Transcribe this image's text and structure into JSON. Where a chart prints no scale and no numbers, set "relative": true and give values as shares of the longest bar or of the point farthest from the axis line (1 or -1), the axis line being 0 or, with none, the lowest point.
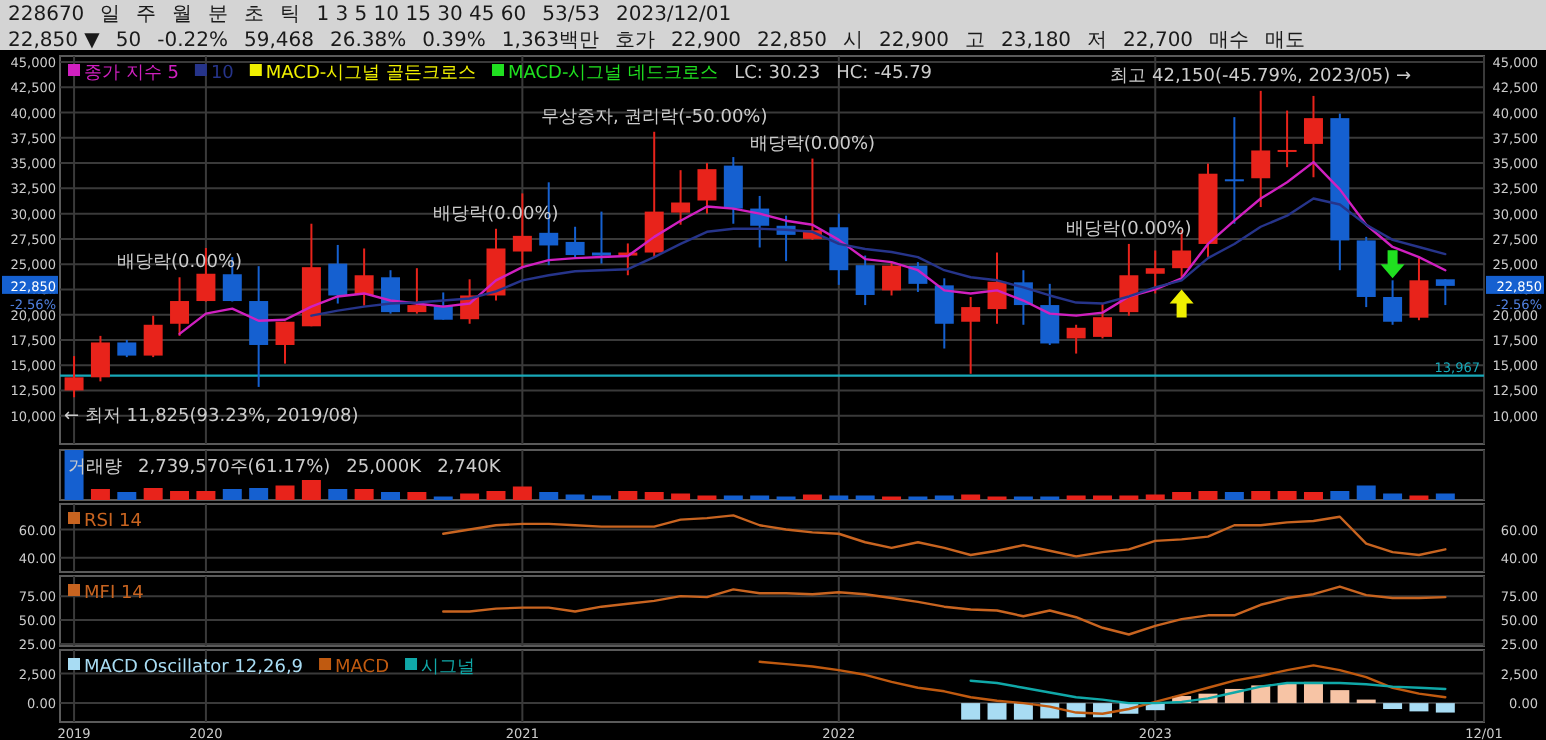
{
  "chart_data": [
    {
      "type": "other",
      "annotations": [
        "228670",
        "일",
        "주",
        "월",
        "분",
        "초",
        "틱",
        "1 3 5 10 15 30 45 60",
        "53/53",
        "2023/12/01"
      ]
    },
    {
      "type": "other",
      "annotations": [
        "22,850 ▼",
        "50",
        "-0.22%",
        "59,468",
        "26.38%",
        "0.39%",
        "1,363백만",
        "호가",
        "22,900",
        "22,850",
        "시",
        "22,900",
        "고",
        "23,180",
        "저",
        "22,700",
        "매수",
        "매도"
      ]
    },
    {
      "type": "candlestick",
      "x": [
        "2019-08",
        "2019-09",
        "2019-10",
        "2019-11",
        "2019-12",
        "2020-01",
        "2020-02",
        "2020-03",
        "2020-04",
        "2020-05",
        "2020-06",
        "2020-07",
        "2020-08",
        "2020-09",
        "2020-10",
        "2020-11",
        "2020-12",
        "2021-01",
        "2021-02",
        "2021-03",
        "2021-04",
        "2021-05",
        "2021-06",
        "2021-07",
        "2021-08",
        "2021-09",
        "2021-10",
        "2021-11",
        "2021-12",
        "2022-01",
        "2022-02",
        "2022-03",
        "2022-04",
        "2022-05",
        "2022-06",
        "2022-07",
        "2022-08",
        "2022-09",
        "2022-10",
        "2022-11",
        "2022-12",
        "2023-01",
        "2023-02",
        "2023-03",
        "2023-04",
        "2023-05",
        "2023-06",
        "2023-07",
        "2023-08",
        "2023-09",
        "2023-10",
        "2023-11",
        "2023-12"
      ],
      "ohlc": [
        [
          12500,
          15900,
          11825,
          13800
        ],
        [
          13800,
          17900,
          13400,
          17250
        ],
        [
          17250,
          17500,
          15800,
          15950
        ],
        [
          15950,
          19900,
          15800,
          19000
        ],
        [
          19100,
          23700,
          17900,
          21350
        ],
        [
          21350,
          26600,
          21300,
          24050
        ],
        [
          24000,
          25700,
          21300,
          21350
        ],
        [
          21350,
          24800,
          12850,
          17000
        ],
        [
          17000,
          19300,
          15150,
          19300
        ],
        [
          18850,
          29000,
          18850,
          24700
        ],
        [
          25050,
          26900,
          21100,
          21900
        ],
        [
          21950,
          26550,
          20900,
          23900
        ],
        [
          23700,
          24400,
          20100,
          20250
        ],
        [
          20250,
          24600,
          20100,
          20950
        ],
        [
          20900,
          22200,
          19500,
          19500
        ],
        [
          19550,
          23500,
          19100,
          21900
        ],
        [
          21900,
          28500,
          21400,
          26550
        ],
        [
          26250,
          32000,
          24700,
          27800
        ],
        [
          28100,
          33100,
          24900,
          26850
        ],
        [
          27200,
          28700,
          25700,
          25900
        ],
        [
          26150,
          30200,
          25050,
          25850
        ],
        [
          25850,
          27050,
          23900,
          26150
        ],
        [
          26150,
          38100,
          25700,
          30200
        ],
        [
          30100,
          34300,
          28900,
          31100
        ],
        [
          31300,
          35000,
          30000,
          34400
        ],
        [
          34750,
          35600,
          29000,
          30500
        ],
        [
          30500,
          31750,
          26650,
          28800
        ],
        [
          28800,
          29800,
          25300,
          27900
        ],
        [
          27500,
          35450,
          27400,
          28350
        ],
        [
          28650,
          30000,
          22950,
          24400
        ],
        [
          24900,
          25850,
          20950,
          21950
        ],
        [
          22400,
          25200,
          21900,
          24850
        ],
        [
          24850,
          25200,
          22250,
          23050
        ],
        [
          22900,
          23600,
          16650,
          19100
        ],
        [
          19300,
          21750,
          14150,
          20750
        ],
        [
          20550,
          26150,
          19100,
          23250
        ],
        [
          23200,
          24400,
          19000,
          20950
        ],
        [
          20950,
          23050,
          17000,
          17150
        ],
        [
          17650,
          19000,
          16150,
          18700
        ],
        [
          17800,
          21100,
          17650,
          19750
        ],
        [
          20250,
          27000,
          19900,
          23900
        ],
        [
          24050,
          26350,
          22100,
          24600
        ],
        [
          24600,
          28350,
          23750,
          26350
        ],
        [
          27000,
          34950,
          25700,
          33950
        ],
        [
          33400,
          39550,
          29000,
          33200
        ],
        [
          33500,
          42150,
          30650,
          36250
        ],
        [
          36250,
          40200,
          34600,
          36300
        ],
        [
          36900,
          41650,
          33600,
          39450
        ],
        [
          39450,
          39900,
          24400,
          27350
        ],
        [
          27350,
          27700,
          20750,
          21750
        ],
        [
          21750,
          23400,
          19000,
          19300
        ],
        [
          19700,
          25600,
          19450,
          23400
        ],
        [
          23500,
          23500,
          20950,
          22850
        ]
      ],
      "colors": [
        "#e8231b",
        "#e8231b",
        "#1560d0",
        "#e8231b",
        "#e8231b",
        "#e8231b",
        "#1560d0",
        "#1560d0",
        "#e8231b",
        "#e8231b",
        "#1560d0",
        "#e8231b",
        "#1560d0",
        "#e8231b",
        "#1560d0",
        "#e8231b",
        "#e8231b",
        "#e8231b",
        "#1560d0",
        "#1560d0",
        "#1560d0",
        "#e8231b",
        "#e8231b",
        "#e8231b",
        "#e8231b",
        "#1560d0",
        "#1560d0",
        "#1560d0",
        "#e8231b",
        "#1560d0",
        "#1560d0",
        "#e8231b",
        "#1560d0",
        "#1560d0",
        "#e8231b",
        "#e8231b",
        "#1560d0",
        "#1560d0",
        "#e8231b",
        "#e8231b",
        "#e8231b",
        "#e8231b",
        "#e8231b",
        "#e8231b",
        "#1560d0",
        "#e8231b",
        "#e8231b",
        "#e8231b",
        "#1560d0",
        "#1560d0",
        "#1560d0",
        "#e8231b",
        "#1560d0"
      ],
      "series": [
        {
          "name": "종가 지수 5",
          "type": "line",
          "color": "#d020c0",
          "values": [
            null,
            null,
            null,
            null,
            18100,
            20100,
            20600,
            19400,
            19500,
            20800,
            21800,
            22100,
            21400,
            21100,
            20800,
            21100,
            23400,
            24700,
            25400,
            25600,
            25700,
            25800,
            27700,
            29300,
            30700,
            30500,
            30000,
            29300,
            28900,
            27400,
            25500,
            25200,
            24400,
            22400,
            22100,
            22400,
            21400,
            20100,
            19900,
            20200,
            21800,
            22500,
            23600,
            27000,
            29300,
            31500,
            33100,
            35100,
            32400,
            28900,
            26700,
            25700,
            24400
          ]
        },
        {
          "name": "10",
          "type": "line",
          "color": "#26348a",
          "values": [
            null,
            null,
            null,
            null,
            null,
            null,
            null,
            null,
            null,
            19900,
            20400,
            20800,
            21100,
            21200,
            21400,
            21600,
            22300,
            23400,
            23900,
            24300,
            24400,
            24500,
            25700,
            27000,
            28200,
            28500,
            28500,
            28400,
            28200,
            27000,
            26500,
            26200,
            25700,
            24400,
            23700,
            23400,
            22700,
            21900,
            21200,
            21100,
            21800,
            22700,
            23400,
            25600,
            27000,
            28700,
            29800,
            31500,
            30900,
            28900,
            27400,
            26700,
            26000
          ]
        },
        {
          "name": "MACD-시그널 골든크로스",
          "type": "scatter",
          "color": "#f0f000",
          "x": [
            "2023-02"
          ],
          "values": [
            21100
          ]
        },
        {
          "name": "MACD-시그널 데드크로스",
          "type": "scatter",
          "color": "#20e020",
          "x": [
            "2023-10"
          ],
          "values": [
            25000
          ]
        }
      ],
      "xlim": [
        "2019-07-15",
        "2024-01-15"
      ],
      "ylim": [
        7200,
        45600
      ],
      "yticks": [
        {
          "value": 10000,
          "label": "10,000"
        },
        {
          "value": 12500,
          "label": "12,500"
        },
        {
          "value": 15000,
          "label": "15,000"
        },
        {
          "value": 17500,
          "label": "17,500"
        },
        {
          "value": 20000,
          "label": "20,000"
        },
        {
          "value": 22500,
          "label": null
        },
        {
          "value": 25000,
          "label": "25,000"
        },
        {
          "value": 27500,
          "label": "27,500"
        },
        {
          "value": 30000,
          "label": "30,000"
        },
        {
          "value": 32500,
          "label": "32,500"
        },
        {
          "value": 35000,
          "label": "35,000"
        },
        {
          "value": 37500,
          "label": "37,500"
        },
        {
          "value": 40000,
          "label": "40,000"
        },
        {
          "value": 42500,
          "label": "42,500"
        },
        {
          "value": 45000,
          "label": "45,000"
        }
      ],
      "y2lim": [
        7200,
        45600
      ],
      "y2ticks": [
        {
          "value": 10000,
          "label": "10,000"
        },
        {
          "value": 12500,
          "label": "12,500"
        },
        {
          "value": 15000,
          "label": "15,000"
        },
        {
          "value": 17500,
          "label": "17,500"
        },
        {
          "value": 20000,
          "label": "20,000"
        },
        {
          "value": 22500,
          "label": null
        },
        {
          "value": 25000,
          "label": "25,000"
        },
        {
          "value": 27500,
          "label": "27,500"
        },
        {
          "value": 30000,
          "label": "30,000"
        },
        {
          "value": 32500,
          "label": "32,500"
        },
        {
          "value": 35000,
          "label": "35,000"
        },
        {
          "value": 37500,
          "label": "37,500"
        },
        {
          "value": 40000,
          "label": "40,000"
        },
        {
          "value": 42500,
          "label": "42,500"
        },
        {
          "value": 45000,
          "label": "45,000"
        }
      ],
      "tick_labels": "y",
      "grid": true,
      "legend": "top left",
      "ref_lines": [
        {
          "axis": "y",
          "value": 13967,
          "label": "13,967",
          "color": "#18a8b8"
        }
      ],
      "annotations": [
        "LC: 30.23",
        "HC: -45.79",
        {
          "text": "22,850",
          "y": 22850
        },
        "-2.56%",
        {
          "text": "배당락(0.00%)",
          "x": "2019-12",
          "y": 23700
        },
        {
          "text": "배당락(0.00%)",
          "x": "2020-12",
          "y": 28500
        },
        {
          "text": "무상증자, 권리락(-50.00%)",
          "x": "2021-06",
          "y": 38100
        },
        {
          "text": "배당락(0.00%)",
          "x": "2021-12",
          "y": 35450
        },
        {
          "text": "배당락(0.00%)",
          "x": "2022-12",
          "y": 27000
        },
        {
          "text": "최고 42,150(-45.79%, 2023/05) →",
          "x": "2023-05",
          "y": 42150
        },
        {
          "text": "← 최저 11,825(93.23%, 2019/08)",
          "x": "2019-08",
          "y": 11825
        }
      ]
    },
    {
      "type": "bar",
      "relative": true,
      "x": [
        "2019-08",
        "2019-09",
        "2019-10",
        "2019-11",
        "2019-12",
        "2020-01",
        "2020-02",
        "2020-03",
        "2020-04",
        "2020-05",
        "2020-06",
        "2020-07",
        "2020-08",
        "2020-09",
        "2020-10",
        "2020-11",
        "2020-12",
        "2021-01",
        "2021-02",
        "2021-03",
        "2021-04",
        "2021-05",
        "2021-06",
        "2021-07",
        "2021-08",
        "2021-09",
        "2021-10",
        "2021-11",
        "2021-12",
        "2022-01",
        "2022-02",
        "2022-03",
        "2022-04",
        "2022-05",
        "2022-06",
        "2022-07",
        "2022-08",
        "2022-09",
        "2022-10",
        "2022-11",
        "2022-12",
        "2023-01",
        "2023-02",
        "2023-03",
        "2023-04",
        "2023-05",
        "2023-06",
        "2023-07",
        "2023-08",
        "2023-09",
        "2023-10",
        "2023-11",
        "2023-12"
      ],
      "values": [
        1,
        0.22,
        0.16,
        0.24,
        0.18,
        0.18,
        0.22,
        0.24,
        0.29,
        0.4,
        0.22,
        0.22,
        0.16,
        0.16,
        0.07,
        0.13,
        0.18,
        0.27,
        0.16,
        0.11,
        0.09,
        0.18,
        0.16,
        0.13,
        0.09,
        0.09,
        0.09,
        0.07,
        0.11,
        0.09,
        0.09,
        0.07,
        0.07,
        0.09,
        0.11,
        0.07,
        0.07,
        0.07,
        0.09,
        0.09,
        0.09,
        0.11,
        0.16,
        0.18,
        0.16,
        0.18,
        0.18,
        0.16,
        0.18,
        0.29,
        0.13,
        0.09,
        0.13
      ],
      "colors": [
        "#1560d0",
        "#e8231b",
        "#1560d0",
        "#e8231b",
        "#e8231b",
        "#e8231b",
        "#1560d0",
        "#1560d0",
        "#e8231b",
        "#e8231b",
        "#1560d0",
        "#e8231b",
        "#1560d0",
        "#e8231b",
        "#1560d0",
        "#e8231b",
        "#e8231b",
        "#e8231b",
        "#1560d0",
        "#1560d0",
        "#1560d0",
        "#e8231b",
        "#e8231b",
        "#e8231b",
        "#e8231b",
        "#1560d0",
        "#1560d0",
        "#1560d0",
        "#e8231b",
        "#1560d0",
        "#1560d0",
        "#e8231b",
        "#1560d0",
        "#1560d0",
        "#e8231b",
        "#e8231b",
        "#1560d0",
        "#1560d0",
        "#e8231b",
        "#e8231b",
        "#e8231b",
        "#e8231b",
        "#e8231b",
        "#e8231b",
        "#1560d0",
        "#e8231b",
        "#e8231b",
        "#e8231b",
        "#1560d0",
        "#1560d0",
        "#1560d0",
        "#e8231b",
        "#1560d0"
      ],
      "xlim": [
        "2019-07-15",
        "2024-01-15"
      ],
      "tick_labels": false,
      "grid": "x",
      "annotations": [
        "거래량",
        "2,739,570주(61.17%)",
        "25,000K",
        "2,740K"
      ]
    },
    {
      "type": "line",
      "x": [
        "2020-10",
        "2020-11",
        "2020-12",
        "2021-01",
        "2021-02",
        "2021-03",
        "2021-04",
        "2021-05",
        "2021-06",
        "2021-07",
        "2021-08",
        "2021-09",
        "2021-10",
        "2021-11",
        "2021-12",
        "2022-01",
        "2022-02",
        "2022-03",
        "2022-04",
        "2022-05",
        "2022-06",
        "2022-07",
        "2022-08",
        "2022-09",
        "2022-10",
        "2022-11",
        "2022-12",
        "2023-01",
        "2023-02",
        "2023-03",
        "2023-04",
        "2023-05",
        "2023-06",
        "2023-07",
        "2023-08",
        "2023-09",
        "2023-10",
        "2023-11",
        "2023-12"
      ],
      "series": [
        {
          "name": "RSI 14",
          "color": "#c86420",
          "values": [
            57,
            60,
            63,
            64,
            64,
            63,
            62,
            62,
            62,
            67,
            68,
            70,
            63,
            60,
            58,
            57,
            51,
            47,
            51,
            47,
            42,
            45,
            49,
            45,
            41,
            44,
            46,
            52,
            53,
            55,
            63,
            63,
            65,
            66,
            69,
            50,
            44,
            42,
            46
          ]
        }
      ],
      "xlim": [
        "2019-07-15",
        "2024-01-15"
      ],
      "ylim": [
        30,
        78
      ],
      "yticks": [
        {
          "value": 40,
          "label": "40.00"
        },
        {
          "value": 60,
          "label": "60.00"
        }
      ],
      "y2lim": [
        30,
        78
      ],
      "y2ticks": [
        {
          "value": 40,
          "label": "40.00"
        },
        {
          "value": 60,
          "label": "60.00"
        }
      ],
      "tick_labels": "y",
      "grid": true,
      "legend": "top left"
    },
    {
      "type": "line",
      "x": [
        "2020-10",
        "2020-11",
        "2020-12",
        "2021-01",
        "2021-02",
        "2021-03",
        "2021-04",
        "2021-05",
        "2021-06",
        "2021-07",
        "2021-08",
        "2021-09",
        "2021-10",
        "2021-11",
        "2021-12",
        "2022-01",
        "2022-02",
        "2022-03",
        "2022-04",
        "2022-05",
        "2022-06",
        "2022-07",
        "2022-08",
        "2022-09",
        "2022-10",
        "2022-11",
        "2022-12",
        "2023-01",
        "2023-02",
        "2023-03",
        "2023-04",
        "2023-05",
        "2023-06",
        "2023-07",
        "2023-08",
        "2023-09",
        "2023-10",
        "2023-11",
        "2023-12"
      ],
      "series": [
        {
          "name": "MFI 14",
          "color": "#c86420",
          "values": [
            59,
            59,
            62,
            63,
            63,
            59,
            64,
            67,
            70,
            75,
            74,
            82,
            78,
            78,
            77,
            79,
            77,
            73,
            69,
            64,
            61,
            60,
            54,
            60,
            53,
            42,
            35,
            44,
            51,
            55,
            55,
            66,
            73,
            77,
            85,
            76,
            73,
            73,
            74
          ]
        }
      ],
      "xlim": [
        "2019-07-15",
        "2024-01-15"
      ],
      "ylim": [
        23,
        96
      ],
      "yticks": [
        {
          "value": 25,
          "label": "25.00"
        },
        {
          "value": 50,
          "label": "50.00"
        },
        {
          "value": 75,
          "label": "75.00"
        }
      ],
      "y2lim": [
        23,
        96
      ],
      "y2ticks": [
        {
          "value": 25,
          "label": "25.00"
        },
        {
          "value": 50,
          "label": "50.00"
        },
        {
          "value": 75,
          "label": "75.00"
        }
      ],
      "tick_labels": "y",
      "grid": true,
      "legend": "top left"
    },
    {
      "type": "line",
      "x": [
        "2021-10",
        "2021-11",
        "2021-12",
        "2022-01",
        "2022-02",
        "2022-03",
        "2022-04",
        "2022-05",
        "2022-06",
        "2022-07",
        "2022-08",
        "2022-09",
        "2022-10",
        "2022-11",
        "2022-12",
        "2023-01",
        "2023-02",
        "2023-03",
        "2023-04",
        "2023-05",
        "2023-06",
        "2023-07",
        "2023-08",
        "2023-09",
        "2023-10",
        "2023-11",
        "2023-12"
      ],
      "series": [
        {
          "name": "MACD Oscillator 12,26,9",
          "type": "bar",
          "color": "#a8dcf3",
          "colors": [
            null,
            null,
            null,
            null,
            null,
            null,
            null,
            null,
            "#a8dcf3",
            "#a8dcf3",
            "#a8dcf3",
            "#a8dcf3",
            "#a8dcf3",
            "#a8dcf3",
            "#a8dcf3",
            "#a8dcf3",
            "#f7c4a5",
            "#f7c4a5",
            "#f7c4a5",
            "#f7c4a5",
            "#f7c4a5",
            "#f7c4a5",
            "#f7c4a5",
            "#f7c4a5",
            "#a8dcf3",
            "#a8dcf3",
            "#a8dcf3"
          ],
          "values": [
            null,
            null,
            null,
            null,
            null,
            null,
            null,
            null,
            -1400,
            -1400,
            -1400,
            -1300,
            -1200,
            -1200,
            -900,
            -600,
            600,
            800,
            1200,
            1500,
            1700,
            1800,
            1100,
            300,
            -500,
            -700,
            -800
          ]
        },
        {
          "name": "MACD",
          "color": "#c05a10",
          "values": [
            3500,
            3300,
            3100,
            2800,
            2400,
            1800,
            1300,
            1000,
            500,
            200,
            0,
            -300,
            -800,
            -900,
            -500,
            100,
            700,
            1300,
            1900,
            2300,
            2800,
            3200,
            2800,
            2200,
            1300,
            800,
            500
          ]
        },
        {
          "name": "시그널",
          "color": "#10a8a8",
          "values": [
            null,
            null,
            null,
            null,
            null,
            null,
            null,
            null,
            1900,
            1700,
            1300,
            900,
            500,
            300,
            0,
            0,
            100,
            400,
            900,
            1400,
            1700,
            1700,
            1700,
            1600,
            1400,
            1300,
            1200
          ]
        }
      ],
      "xlim": [
        "2019-07-15",
        "2024-01-15"
      ],
      "xticks": [
        {
          "value": "2019-08",
          "label": "2019"
        },
        {
          "value": "2020-01",
          "label": "2020"
        },
        {
          "value": "2021-01",
          "label": "2021"
        },
        {
          "value": "2022-01",
          "label": "2022"
        },
        {
          "value": "2023-01",
          "label": "2023"
        },
        {
          "value": "2024-01-15",
          "label": "12/01"
        }
      ],
      "ylim": [
        -1600,
        4500
      ],
      "yticks": [
        {
          "value": 0,
          "label": "0.00"
        },
        {
          "value": 2500,
          "label": "2,500"
        }
      ],
      "y2lim": [
        -1600,
        4500
      ],
      "y2ticks": [
        {
          "value": 0,
          "label": "0.00"
        },
        {
          "value": 2500,
          "label": "2,500"
        }
      ],
      "grid": true,
      "legend": "top left"
    }
  ]
}
